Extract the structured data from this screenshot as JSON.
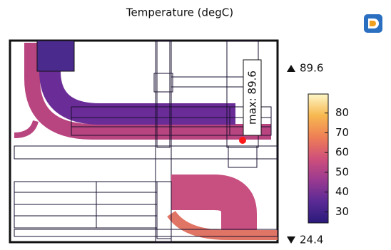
{
  "chart_data": {
    "type": "field",
    "title": "Temperature (degC)",
    "annotation": "max: 89.6",
    "max": 89.6,
    "min": 24.4,
    "colorbar": {
      "lim": [
        24.4,
        89.6
      ],
      "ticks": [
        30,
        40,
        50,
        60,
        70,
        80
      ],
      "colors": [
        "#2a1a7a",
        "#5a2a95",
        "#9a3a90",
        "#d0507a",
        "#ee7f55",
        "#f7b850",
        "#fdf7c8"
      ]
    }
  }
}
